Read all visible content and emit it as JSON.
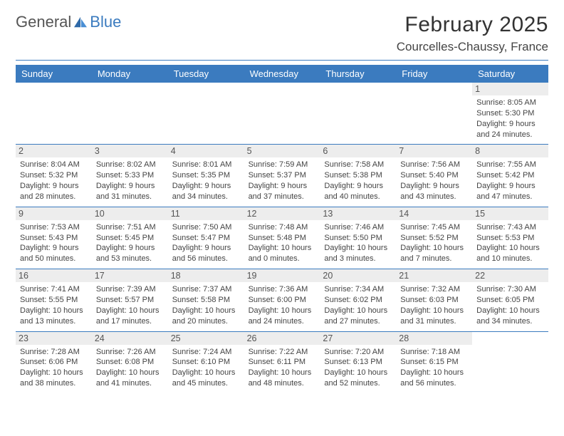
{
  "logo": {
    "textA": "General",
    "textB": "Blue"
  },
  "title": "February 2025",
  "location": "Courcelles-Chaussy, France",
  "colors": {
    "accent": "#3b7bbf",
    "headerText": "#ffffff",
    "dayNumBg": "#ededed",
    "bodyText": "#444444"
  },
  "dayNames": [
    "Sunday",
    "Monday",
    "Tuesday",
    "Wednesday",
    "Thursday",
    "Friday",
    "Saturday"
  ],
  "weeks": [
    [
      null,
      null,
      null,
      null,
      null,
      null,
      {
        "n": "1",
        "sr": "8:05 AM",
        "ss": "5:30 PM",
        "dl": "9 hours and 24 minutes."
      }
    ],
    [
      {
        "n": "2",
        "sr": "8:04 AM",
        "ss": "5:32 PM",
        "dl": "9 hours and 28 minutes."
      },
      {
        "n": "3",
        "sr": "8:02 AM",
        "ss": "5:33 PM",
        "dl": "9 hours and 31 minutes."
      },
      {
        "n": "4",
        "sr": "8:01 AM",
        "ss": "5:35 PM",
        "dl": "9 hours and 34 minutes."
      },
      {
        "n": "5",
        "sr": "7:59 AM",
        "ss": "5:37 PM",
        "dl": "9 hours and 37 minutes."
      },
      {
        "n": "6",
        "sr": "7:58 AM",
        "ss": "5:38 PM",
        "dl": "9 hours and 40 minutes."
      },
      {
        "n": "7",
        "sr": "7:56 AM",
        "ss": "5:40 PM",
        "dl": "9 hours and 43 minutes."
      },
      {
        "n": "8",
        "sr": "7:55 AM",
        "ss": "5:42 PM",
        "dl": "9 hours and 47 minutes."
      }
    ],
    [
      {
        "n": "9",
        "sr": "7:53 AM",
        "ss": "5:43 PM",
        "dl": "9 hours and 50 minutes."
      },
      {
        "n": "10",
        "sr": "7:51 AM",
        "ss": "5:45 PM",
        "dl": "9 hours and 53 minutes."
      },
      {
        "n": "11",
        "sr": "7:50 AM",
        "ss": "5:47 PM",
        "dl": "9 hours and 56 minutes."
      },
      {
        "n": "12",
        "sr": "7:48 AM",
        "ss": "5:48 PM",
        "dl": "10 hours and 0 minutes."
      },
      {
        "n": "13",
        "sr": "7:46 AM",
        "ss": "5:50 PM",
        "dl": "10 hours and 3 minutes."
      },
      {
        "n": "14",
        "sr": "7:45 AM",
        "ss": "5:52 PM",
        "dl": "10 hours and 7 minutes."
      },
      {
        "n": "15",
        "sr": "7:43 AM",
        "ss": "5:53 PM",
        "dl": "10 hours and 10 minutes."
      }
    ],
    [
      {
        "n": "16",
        "sr": "7:41 AM",
        "ss": "5:55 PM",
        "dl": "10 hours and 13 minutes."
      },
      {
        "n": "17",
        "sr": "7:39 AM",
        "ss": "5:57 PM",
        "dl": "10 hours and 17 minutes."
      },
      {
        "n": "18",
        "sr": "7:37 AM",
        "ss": "5:58 PM",
        "dl": "10 hours and 20 minutes."
      },
      {
        "n": "19",
        "sr": "7:36 AM",
        "ss": "6:00 PM",
        "dl": "10 hours and 24 minutes."
      },
      {
        "n": "20",
        "sr": "7:34 AM",
        "ss": "6:02 PM",
        "dl": "10 hours and 27 minutes."
      },
      {
        "n": "21",
        "sr": "7:32 AM",
        "ss": "6:03 PM",
        "dl": "10 hours and 31 minutes."
      },
      {
        "n": "22",
        "sr": "7:30 AM",
        "ss": "6:05 PM",
        "dl": "10 hours and 34 minutes."
      }
    ],
    [
      {
        "n": "23",
        "sr": "7:28 AM",
        "ss": "6:06 PM",
        "dl": "10 hours and 38 minutes."
      },
      {
        "n": "24",
        "sr": "7:26 AM",
        "ss": "6:08 PM",
        "dl": "10 hours and 41 minutes."
      },
      {
        "n": "25",
        "sr": "7:24 AM",
        "ss": "6:10 PM",
        "dl": "10 hours and 45 minutes."
      },
      {
        "n": "26",
        "sr": "7:22 AM",
        "ss": "6:11 PM",
        "dl": "10 hours and 48 minutes."
      },
      {
        "n": "27",
        "sr": "7:20 AM",
        "ss": "6:13 PM",
        "dl": "10 hours and 52 minutes."
      },
      {
        "n": "28",
        "sr": "7:18 AM",
        "ss": "6:15 PM",
        "dl": "10 hours and 56 minutes."
      },
      null
    ]
  ],
  "labels": {
    "sunrise": "Sunrise: ",
    "sunset": "Sunset: ",
    "daylight": "Daylight: "
  }
}
